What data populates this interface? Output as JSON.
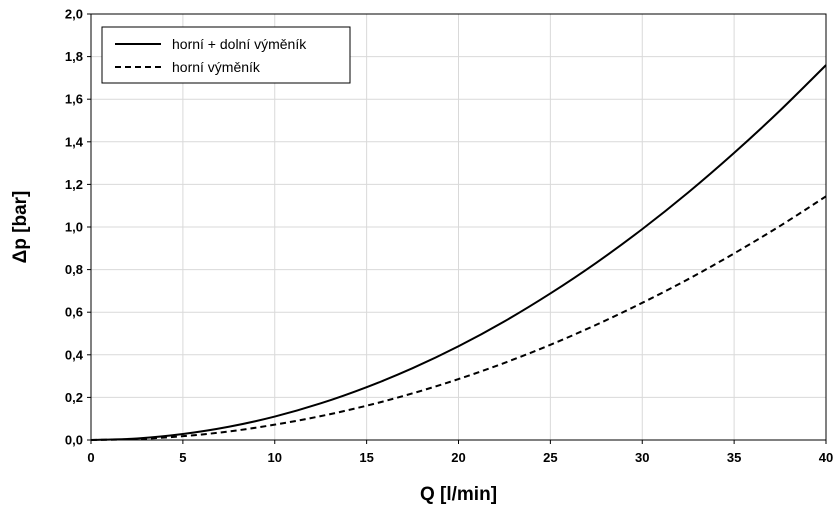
{
  "chart_data": {
    "type": "line",
    "xlabel": "Q [l/min]",
    "ylabel": "Δp [bar]",
    "xlim": [
      0,
      40
    ],
    "ylim": [
      0,
      2.0
    ],
    "x_ticks": [
      "0",
      "5",
      "10",
      "15",
      "20",
      "25",
      "30",
      "35",
      "40"
    ],
    "y_ticks": [
      "0,0",
      "0,2",
      "0,4",
      "0,6",
      "0,8",
      "1,0",
      "1,2",
      "1,4",
      "1,6",
      "1,8",
      "2,0"
    ],
    "grid": true,
    "legend_position": "top-left",
    "x": [
      0,
      2.5,
      5,
      7.5,
      10,
      12.5,
      15,
      17.5,
      20,
      22.5,
      25,
      27.5,
      30,
      32.5,
      35,
      37.5,
      40
    ],
    "series": [
      {
        "name": "horní + dolní výměník",
        "style": "solid",
        "color": "#000000",
        "values": [
          0,
          0.007,
          0.028,
          0.062,
          0.11,
          0.172,
          0.248,
          0.337,
          0.44,
          0.557,
          0.688,
          0.832,
          0.99,
          1.162,
          1.348,
          1.547,
          1.76
        ]
      },
      {
        "name": "horní výměník",
        "style": "dashed",
        "color": "#000000",
        "values": [
          0,
          0.0045,
          0.018,
          0.04,
          0.072,
          0.112,
          0.161,
          0.219,
          0.286,
          0.362,
          0.447,
          0.541,
          0.644,
          0.755,
          0.876,
          1.005,
          1.144
        ]
      }
    ]
  }
}
